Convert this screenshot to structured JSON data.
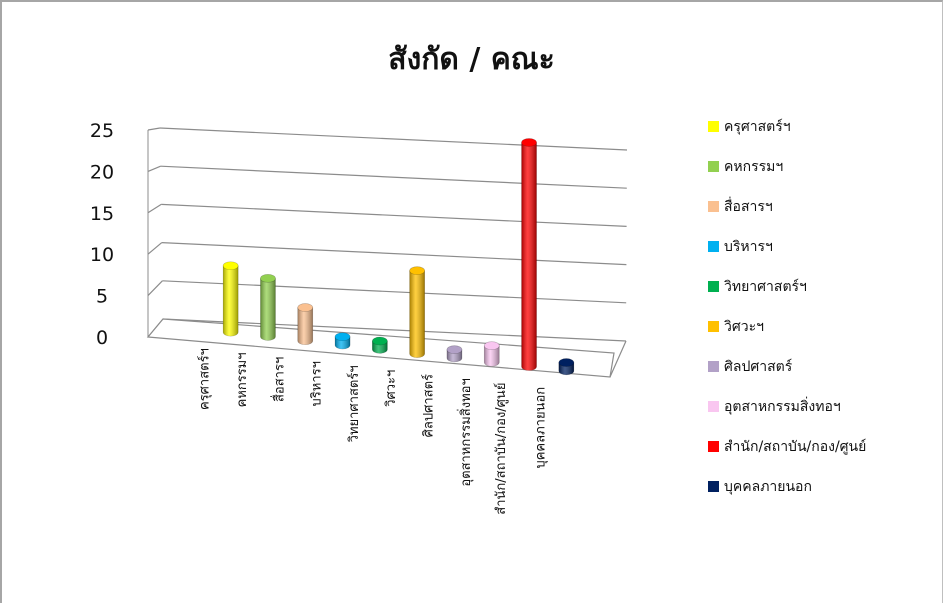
{
  "chart_data": {
    "type": "bar",
    "title": "สังกัด / คณะ",
    "categories": [
      "ครุศาสตร์ฯ",
      "คหกรรมฯ",
      "สื่อสารฯ",
      "บริหารฯ",
      "วิทยาศาสตร์ฯ",
      "วิศวะฯ",
      "ศิลปศาสตร์",
      "อุตสาหกรรมสิ่งทอฯ",
      "สำนัก/สถาบัน/กอง/ศูนย์",
      "บุคคลภายนอก"
    ],
    "values": [
      8,
      7,
      4,
      1,
      1,
      10,
      1,
      2,
      27,
      1
    ],
    "colors": [
      "#ffff00",
      "#92d050",
      "#fac090",
      "#00b0f0",
      "#00b050",
      "#ffc000",
      "#b2a1c7",
      "#f9c6f0",
      "#ff0000",
      "#002060"
    ],
    "ylim": [
      0,
      25
    ],
    "yticks": [
      "0",
      "5",
      "10",
      "15",
      "20",
      "25"
    ],
    "legend": [
      "ครุศาสตร์ฯ",
      "คหกรรมฯ",
      "สื่อสารฯ",
      "บริหารฯ",
      "วิทยาศาสตร์ฯ",
      "วิศวะฯ",
      "ศิลปศาสตร์",
      "อุตสาหกรรมสิ่งทอฯ",
      "สำนัก/สถาบัน/กอง/ศูนย์",
      "บุคคลภายนอก"
    ],
    "legend_position": "right",
    "grid": true
  }
}
